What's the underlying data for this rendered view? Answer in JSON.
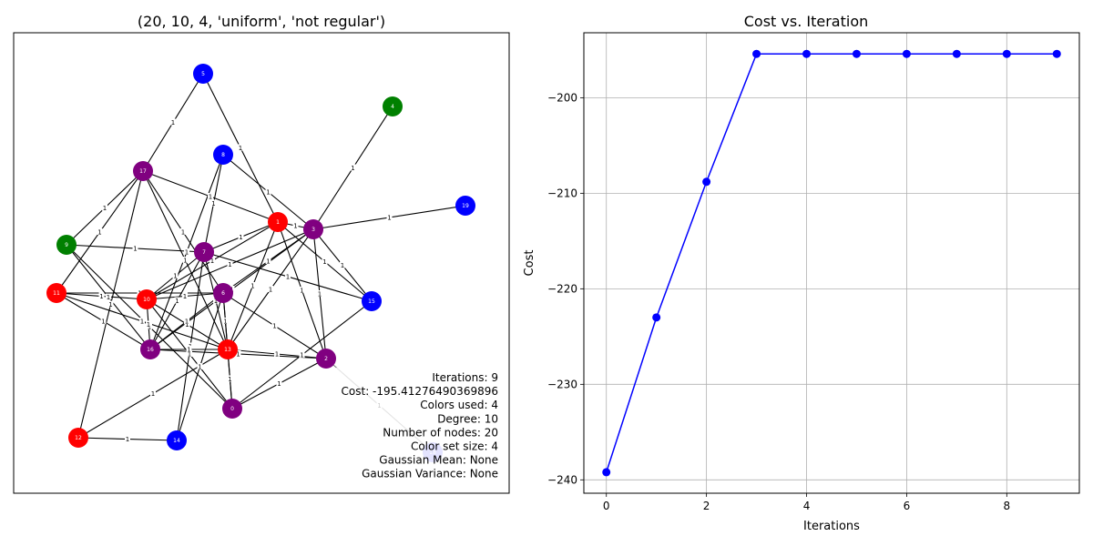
{
  "colors": {
    "red": "#ff0000",
    "purple": "#800080",
    "blue": "#0000ff",
    "green": "#008000",
    "node_text": "#ffffff",
    "edge": "#000000",
    "highlight_edge": "#808080",
    "line": "#0000ff",
    "grid": "#b0b0b0"
  },
  "chart_data": [
    {
      "type": "network",
      "title": "(20, 10, 4, 'uniform', 'not regular')",
      "edge_label": "1",
      "nodes": [
        {
          "id": "0",
          "color": "purple"
        },
        {
          "id": "1",
          "color": "red"
        },
        {
          "id": "2",
          "color": "purple"
        },
        {
          "id": "3",
          "color": "purple"
        },
        {
          "id": "4",
          "color": "green"
        },
        {
          "id": "5",
          "color": "blue"
        },
        {
          "id": "6",
          "color": "purple"
        },
        {
          "id": "7",
          "color": "purple"
        },
        {
          "id": "8",
          "color": "blue"
        },
        {
          "id": "9",
          "color": "green"
        },
        {
          "id": "10",
          "color": "red"
        },
        {
          "id": "11",
          "color": "red"
        },
        {
          "id": "12",
          "color": "red"
        },
        {
          "id": "13",
          "color": "red"
        },
        {
          "id": "14",
          "color": "blue"
        },
        {
          "id": "15",
          "color": "blue"
        },
        {
          "id": "16",
          "color": "purple"
        },
        {
          "id": "17",
          "color": "purple"
        },
        {
          "id": "18",
          "color": "blue",
          "faded": true
        },
        {
          "id": "19",
          "color": "blue"
        }
      ],
      "edges": [
        [
          "5",
          "17"
        ],
        [
          "5",
          "1"
        ],
        [
          "4",
          "3"
        ],
        [
          "8",
          "3"
        ],
        [
          "8",
          "7"
        ],
        [
          "8",
          "16"
        ],
        [
          "17",
          "1"
        ],
        [
          "17",
          "6"
        ],
        [
          "17",
          "9"
        ],
        [
          "17",
          "11"
        ],
        [
          "17",
          "13"
        ],
        [
          "3",
          "19"
        ],
        [
          "3",
          "1"
        ],
        [
          "3",
          "2"
        ],
        [
          "3",
          "15"
        ],
        [
          "3",
          "10"
        ],
        [
          "3",
          "6"
        ],
        [
          "3",
          "13"
        ],
        [
          "3",
          "16"
        ],
        [
          "1",
          "15"
        ],
        [
          "1",
          "2"
        ],
        [
          "1",
          "10"
        ],
        [
          "1",
          "13"
        ],
        [
          "1",
          "7"
        ],
        [
          "9",
          "7"
        ],
        [
          "9",
          "16"
        ],
        [
          "9",
          "0"
        ],
        [
          "7",
          "15"
        ],
        [
          "7",
          "10"
        ],
        [
          "7",
          "13"
        ],
        [
          "7",
          "14"
        ],
        [
          "7",
          "16"
        ],
        [
          "11",
          "10"
        ],
        [
          "11",
          "6"
        ],
        [
          "11",
          "16"
        ],
        [
          "11",
          "13"
        ],
        [
          "10",
          "6"
        ],
        [
          "10",
          "13"
        ],
        [
          "10",
          "0"
        ],
        [
          "10",
          "16"
        ],
        [
          "6",
          "2"
        ],
        [
          "6",
          "16"
        ],
        [
          "6",
          "13"
        ],
        [
          "6",
          "0"
        ],
        [
          "6",
          "14"
        ],
        [
          "16",
          "2"
        ],
        [
          "16",
          "13"
        ],
        [
          "13",
          "2"
        ],
        [
          "13",
          "12"
        ],
        [
          "13",
          "0"
        ],
        [
          "15",
          "0"
        ],
        [
          "2",
          "0"
        ],
        [
          "12",
          "14"
        ],
        [
          "12",
          "17"
        ]
      ],
      "highlight_edges": [
        [
          "2",
          "18"
        ]
      ],
      "info_lines": [
        "Iterations: 9",
        "Cost: -195.41276490369896",
        "Colors used: 4",
        "Degree: 10",
        "Number of nodes: 20",
        "Color set size: 4",
        "Gaussian Mean: None",
        "Gaussian Variance: None"
      ]
    },
    {
      "type": "line",
      "title": "Cost vs. Iteration",
      "xlabel": "Iterations",
      "ylabel": "Cost",
      "x": [
        0,
        1,
        2,
        3,
        4,
        5,
        6,
        7,
        8,
        9
      ],
      "values": [
        -239.2,
        -223.0,
        -208.8,
        -195.41,
        -195.41,
        -195.41,
        -195.41,
        -195.41,
        -195.41,
        -195.41
      ],
      "xlim": [
        -0.45,
        9.45
      ],
      "ylim": [
        -241.4,
        -193.2
      ],
      "xticks": [
        0,
        2,
        4,
        6,
        8
      ],
      "xtick_labels": [
        "0",
        "2",
        "4",
        "6",
        "8"
      ],
      "yticks": [
        -240,
        -230,
        -220,
        -210,
        -200
      ],
      "ytick_labels": [
        "−240",
        "−230",
        "−220",
        "−210",
        "−200"
      ],
      "grid": true
    }
  ]
}
